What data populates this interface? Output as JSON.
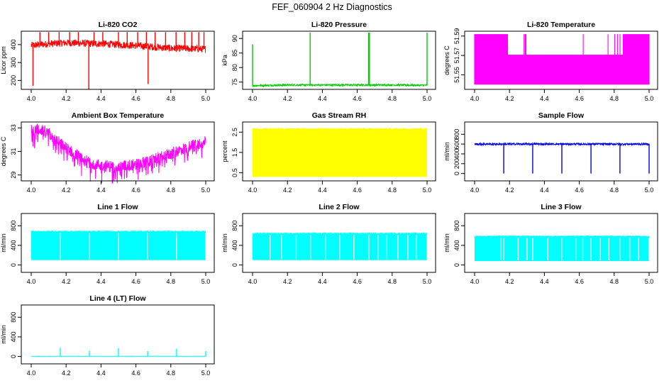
{
  "title": "FEF_060904  2 Hz Diagnostics",
  "chart_data": [
    {
      "type": "line",
      "title": "Li-820 CO2",
      "xlabel": "",
      "ylabel": "Licor ppm",
      "color": "#ff0000",
      "xlim": [
        4.0,
        5.0
      ],
      "ylim": [
        150,
        475
      ],
      "xticks": [
        4.0,
        4.2,
        4.4,
        4.6,
        4.8,
        5.0
      ],
      "yticks": [
        200,
        300,
        400
      ],
      "series": [
        {
          "style": "noise",
          "x": [
            4.0,
            4.1,
            4.2,
            4.4,
            4.6,
            4.8,
            5.0
          ],
          "y": [
            395,
            405,
            410,
            405,
            395,
            380,
            375
          ],
          "amp": 20,
          "spikes": [
            {
              "x": 4.01,
              "y": 170
            },
            {
              "x": 4.05,
              "y": 470
            },
            {
              "x": 4.1,
              "y": 470
            },
            {
              "x": 4.16,
              "y": 470
            },
            {
              "x": 4.22,
              "y": 470
            },
            {
              "x": 4.27,
              "y": 470
            },
            {
              "x": 4.33,
              "y": 150
            },
            {
              "x": 4.36,
              "y": 470
            },
            {
              "x": 4.41,
              "y": 470
            },
            {
              "x": 4.5,
              "y": 470
            },
            {
              "x": 4.55,
              "y": 470
            },
            {
              "x": 4.61,
              "y": 470
            },
            {
              "x": 4.66,
              "y": 470
            },
            {
              "x": 4.67,
              "y": 180
            },
            {
              "x": 4.71,
              "y": 470
            },
            {
              "x": 4.77,
              "y": 470
            },
            {
              "x": 4.83,
              "y": 470
            },
            {
              "x": 4.88,
              "y": 470
            },
            {
              "x": 4.92,
              "y": 470
            },
            {
              "x": 4.96,
              "y": 470
            },
            {
              "x": 4.99,
              "y": 470
            }
          ]
        }
      ]
    },
    {
      "type": "line",
      "title": "Li-820 Pressure",
      "xlabel": "",
      "ylabel": "kPa",
      "color": "#00cc00",
      "xlim": [
        4.0,
        5.0
      ],
      "ylim": [
        72.5,
        92.5
      ],
      "xticks": [
        4.0,
        4.2,
        4.4,
        4.6,
        4.8,
        5.0
      ],
      "yticks": [
        75,
        80,
        85,
        90
      ],
      "series": [
        {
          "style": "noise",
          "x": [
            4.0,
            4.2,
            4.4,
            4.6,
            4.8,
            5.0
          ],
          "y": [
            73.8,
            74.0,
            74.0,
            74.0,
            74.0,
            73.9
          ],
          "amp": 0.3,
          "spikes": [
            {
              "x": 4.0,
              "y": 88
            },
            {
              "x": 4.33,
              "y": 92
            },
            {
              "x": 4.665,
              "y": 92
            },
            {
              "x": 4.67,
              "y": 92
            },
            {
              "x": 5.0,
              "y": 92
            }
          ]
        }
      ]
    },
    {
      "type": "line",
      "title": "Li-820 Temperature",
      "xlabel": "",
      "ylabel": "degrees C",
      "color": "#ff00ff",
      "xlim": [
        4.0,
        5.0
      ],
      "ylim": [
        51.535,
        51.595
      ],
      "xticks": [
        4.0,
        4.2,
        4.4,
        4.6,
        4.8,
        5.0
      ],
      "yticks": [
        51.55,
        51.57,
        51.59
      ],
      "series": [
        {
          "style": "digital",
          "levels": [
            51.54,
            51.57,
            51.592
          ],
          "band_until": 4.19,
          "band_after": 4.85
        }
      ]
    },
    {
      "type": "line",
      "title": "Ambient Box Temperature",
      "xlabel": "",
      "ylabel": "degrees C",
      "color": "#ff00ff",
      "xlim": [
        4.0,
        5.0
      ],
      "ylim": [
        28.5,
        33.5
      ],
      "xticks": [
        4.0,
        4.2,
        4.4,
        4.6,
        4.8,
        5.0
      ],
      "yticks": [
        29,
        31,
        33
      ],
      "series": [
        {
          "style": "noise",
          "x": [
            4.0,
            4.05,
            4.1,
            4.2,
            4.3,
            4.4,
            4.5,
            4.6,
            4.7,
            4.8,
            4.9,
            5.0
          ],
          "y": [
            32.8,
            32.9,
            32.5,
            31.3,
            30.3,
            29.8,
            29.7,
            29.9,
            30.3,
            30.8,
            31.4,
            32.0
          ],
          "amp": 0.5
        }
      ]
    },
    {
      "type": "line",
      "title": "Gas Stream RH",
      "xlabel": "",
      "ylabel": "percent",
      "color": "#ffff00",
      "xlim": [
        4.0,
        5.0
      ],
      "ylim": [
        0.1,
        3.0
      ],
      "xticks": [
        4.0,
        4.2,
        4.4,
        4.6,
        4.8,
        5.0
      ],
      "yticks": [
        0.5,
        1.5,
        2.5
      ],
      "series": [
        {
          "style": "band",
          "lo": 0.3,
          "hi": 2.65,
          "core_lo": 1.0,
          "core_hi": 2.45
        }
      ]
    },
    {
      "type": "line",
      "title": "Sample Flow",
      "xlabel": "",
      "ylabel": "ml/min",
      "color": "#0000dd",
      "xlim": [
        4.0,
        5.0
      ],
      "ylim": [
        -150,
        1050
      ],
      "xticks": [
        4.0,
        4.2,
        4.4,
        4.6,
        4.8,
        5.0
      ],
      "yticks": [
        0,
        200,
        400,
        600,
        800
      ],
      "series": [
        {
          "style": "noise",
          "x": [
            4.0,
            5.0
          ],
          "y": [
            600,
            600
          ],
          "amp": 20,
          "spikes": [
            {
              "x": 4.167,
              "y": 0
            },
            {
              "x": 4.333,
              "y": 0
            },
            {
              "x": 4.5,
              "y": 0
            },
            {
              "x": 4.667,
              "y": 0
            },
            {
              "x": 4.833,
              "y": 0
            },
            {
              "x": 5.0,
              "y": 0
            }
          ]
        }
      ]
    },
    {
      "type": "line",
      "title": "Line 1 Flow",
      "xlabel": "",
      "ylabel": "ml/min",
      "color": "#00ffff",
      "xlim": [
        4.0,
        5.0
      ],
      "ylim": [
        -150,
        1050
      ],
      "xticks": [
        4.0,
        4.2,
        4.4,
        4.6,
        4.8,
        5.0
      ],
      "yticks": [
        0,
        400,
        800
      ],
      "series": [
        {
          "style": "band",
          "lo": 100,
          "hi": 680,
          "gaps": [
            4.167,
            4.333,
            4.5,
            4.667,
            4.833,
            5.0
          ]
        }
      ]
    },
    {
      "type": "line",
      "title": "Line 2 Flow",
      "xlabel": "",
      "ylabel": "ml/min",
      "color": "#00ffff",
      "xlim": [
        4.0,
        5.0
      ],
      "ylim": [
        -150,
        1050
      ],
      "xticks": [
        4.0,
        4.2,
        4.4,
        4.6,
        4.8,
        5.0
      ],
      "yticks": [
        0,
        400,
        800
      ],
      "series": [
        {
          "style": "band",
          "lo": 100,
          "hi": 640,
          "gaps": [
            4.167,
            4.333,
            4.5,
            4.667,
            4.833,
            5.0,
            4.1,
            4.25,
            4.42,
            4.58,
            4.72,
            4.77,
            4.89,
            4.94
          ]
        }
      ]
    },
    {
      "type": "line",
      "title": "Line 3 Flow",
      "xlabel": "",
      "ylabel": "ml/min",
      "color": "#00ffff",
      "xlim": [
        4.0,
        5.0
      ],
      "ylim": [
        -150,
        1050
      ],
      "xticks": [
        4.0,
        4.2,
        4.4,
        4.6,
        4.8,
        5.0
      ],
      "yticks": [
        0,
        400,
        800
      ],
      "series": [
        {
          "style": "band",
          "lo": 80,
          "hi": 580,
          "gaps": [
            4.167,
            4.333,
            4.5,
            4.667,
            4.833,
            5.0,
            4.15,
            4.25,
            4.3,
            4.42,
            4.58,
            4.62,
            4.72,
            4.77,
            4.89,
            4.94
          ]
        }
      ]
    },
    {
      "type": "line",
      "title": "Line 4 (LT) Flow",
      "xlabel": "",
      "ylabel": "ml/min",
      "color": "#00ffff",
      "xlim": [
        4.0,
        5.0
      ],
      "ylim": [
        -150,
        1050
      ],
      "xticks": [
        4.0,
        4.2,
        4.4,
        4.6,
        4.8,
        5.0
      ],
      "yticks": [
        0,
        400,
        800
      ],
      "series": [
        {
          "style": "noise",
          "x": [
            4.0,
            5.0
          ],
          "y": [
            5,
            5
          ],
          "amp": 3,
          "spikes": [
            {
              "x": 4.167,
              "y": 180
            },
            {
              "x": 4.333,
              "y": 120
            },
            {
              "x": 4.5,
              "y": 170
            },
            {
              "x": 4.667,
              "y": 110
            },
            {
              "x": 4.833,
              "y": 160
            },
            {
              "x": 5.0,
              "y": 110
            }
          ]
        }
      ]
    }
  ]
}
